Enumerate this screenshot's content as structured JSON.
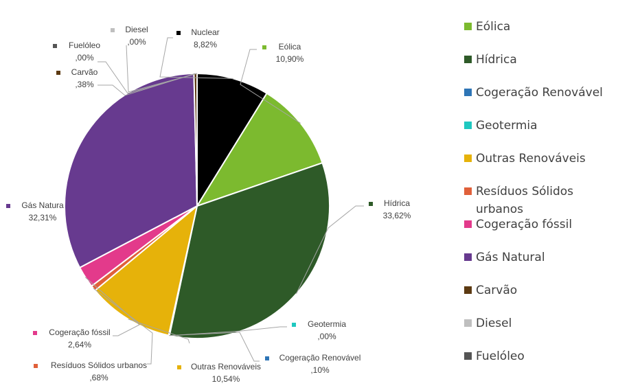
{
  "chart_data": {
    "type": "pie",
    "title": "",
    "legend_position": "right",
    "slices": [
      {
        "name": "Nuclear",
        "value": 8.82,
        "label": "8,82%",
        "color": "#000000"
      },
      {
        "name": "Eólica",
        "value": 10.9,
        "label": "10,90%",
        "color": "#7cba2f"
      },
      {
        "name": "Hídrica",
        "value": 33.62,
        "label": "33,62%",
        "color": "#2e5a28"
      },
      {
        "name": "Geotermia",
        "value": 0.0,
        "label": ",00%",
        "color": "#1fc8c0"
      },
      {
        "name": "Cogeração Renovável",
        "value": 0.1,
        "label": ",10%",
        "color": "#2e75b6"
      },
      {
        "name": "Outras Renováveis",
        "value": 10.54,
        "label": "10,54%",
        "color": "#e6b20a"
      },
      {
        "name": "Resíduos Sólidos urbanos",
        "value": 0.68,
        "label": ",68%",
        "color": "#e0603a"
      },
      {
        "name": "Cogeração fóssil",
        "value": 2.64,
        "label": "2,64%",
        "color": "#e33a8b"
      },
      {
        "name": "Gás Natural",
        "value": 32.31,
        "label": "32,31%",
        "color": "#673a8f",
        "display_name": "Gás Natura"
      },
      {
        "name": "Carvão",
        "value": 0.38,
        "label": ",38%",
        "color": "#5c3a12"
      },
      {
        "name": "Fuelóleo",
        "value": 0.0,
        "label": ",00%",
        "color": "#555555"
      },
      {
        "name": "Diesel",
        "value": 0.0,
        "label": ",00%",
        "color": "#bfbfbf"
      }
    ],
    "legend": [
      {
        "name": "Eólica",
        "color": "#7cba2f"
      },
      {
        "name": "Hídrica",
        "color": "#2e5a28"
      },
      {
        "name": "Cogeração Renovável",
        "color": "#2e75b6"
      },
      {
        "name": "Geotermia",
        "color": "#1fc8c0"
      },
      {
        "name": "Outras Renováveis",
        "color": "#e6b20a"
      },
      {
        "name": "Resíduos Sólidos urbanos",
        "color": "#e0603a",
        "lines": [
          "Resíduos Sólidos",
          "urbanos"
        ]
      },
      {
        "name": "Cogeração fóssil",
        "color": "#e33a8b"
      },
      {
        "name": "Gás Natural",
        "color": "#673a8f"
      },
      {
        "name": "Carvão",
        "color": "#5c3a12"
      },
      {
        "name": "Diesel",
        "color": "#bfbfbf"
      },
      {
        "name": "Fuelóleo",
        "color": "#555555"
      }
    ]
  }
}
